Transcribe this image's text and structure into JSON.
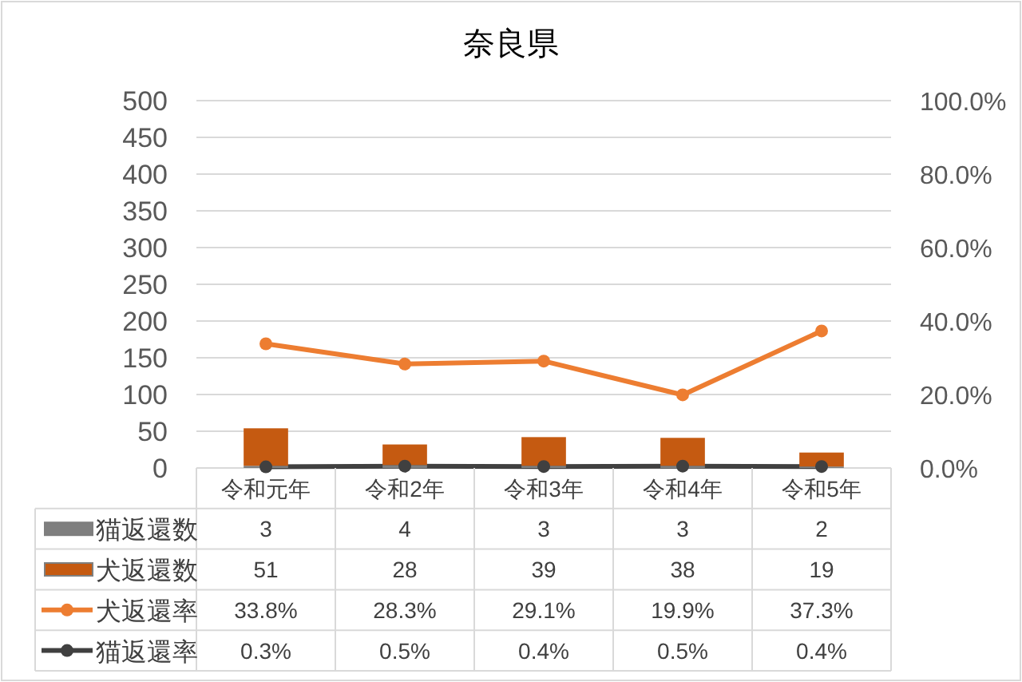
{
  "chart_data": {
    "type": "bar",
    "title": "奈良県",
    "categories": [
      "令和元年",
      "令和2年",
      "令和3年",
      "令和4年",
      "令和5年"
    ],
    "stacked": true,
    "grid": "y",
    "legend": "left",
    "series": [
      {
        "name": "猫返還数",
        "color": "#7f7f7f",
        "values": [
          3,
          4,
          3,
          3,
          2
        ],
        "value_labels": [
          "3",
          "4",
          "3",
          "3",
          "2"
        ]
      },
      {
        "name": "犬返還数",
        "color": "#c55a11",
        "values": [
          51,
          28,
          39,
          38,
          19
        ],
        "value_labels": [
          "51",
          "28",
          "39",
          "38",
          "19"
        ]
      },
      {
        "name": "犬返還率",
        "type": "line",
        "axis": "y2",
        "color": "#ed7d31",
        "marker": "circle",
        "values": [
          33.8,
          28.3,
          29.1,
          19.9,
          37.3
        ],
        "value_labels": [
          "33.8%",
          "28.3%",
          "29.1%",
          "19.9%",
          "37.3%"
        ]
      },
      {
        "name": "猫返還率",
        "type": "line",
        "axis": "y2",
        "color": "#404040",
        "marker": "circle",
        "values": [
          0.3,
          0.5,
          0.4,
          0.5,
          0.4
        ],
        "value_labels": [
          "0.3%",
          "0.5%",
          "0.4%",
          "0.5%",
          "0.4%"
        ]
      }
    ],
    "ylim": [
      0,
      500
    ],
    "yticks": [
      0,
      50,
      100,
      150,
      200,
      250,
      300,
      350,
      400,
      450,
      500
    ],
    "y2lim": [
      0,
      100
    ],
    "y2ticks": [
      {
        "value": 0,
        "label": "0.0%"
      },
      {
        "value": 20,
        "label": "20.0%"
      },
      {
        "value": 40,
        "label": "40.0%"
      },
      {
        "value": 60,
        "label": "60.0%"
      },
      {
        "value": 80,
        "label": "80.0%"
      },
      {
        "value": 100,
        "label": "100.0%"
      }
    ]
  }
}
